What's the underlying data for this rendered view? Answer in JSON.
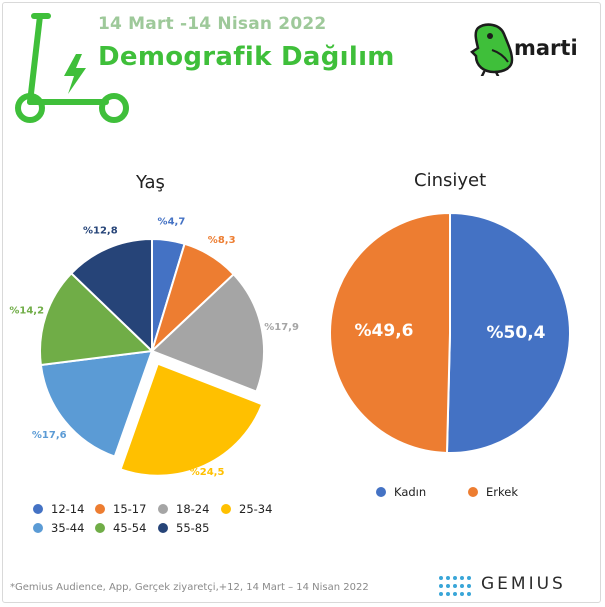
{
  "header": {
    "date_range": "14 Mart -14 Nisan 2022",
    "title": "Demografik Dağılım",
    "brand": "marti",
    "accent_color": "#3fbf3a",
    "icon": "scooter-icon"
  },
  "chart_data": [
    {
      "type": "pie",
      "title": "Yaş",
      "categories": [
        "12-14",
        "15-17",
        "18-24",
        "25-34",
        "35-44",
        "45-54",
        "55-85"
      ],
      "values": [
        4.7,
        8.3,
        17.9,
        24.5,
        17.6,
        14.2,
        12.8
      ],
      "labels": [
        "%4,7",
        "%8,3",
        "%17,9",
        "%24,5",
        "%17,6",
        "%14,2",
        "%12,8"
      ],
      "colors": [
        "#4472c4",
        "#ed7d31",
        "#a5a5a5",
        "#ffc000",
        "#5b9bd5",
        "#70ad47",
        "#264478"
      ],
      "exploded": "25-34",
      "legend": "bottom"
    },
    {
      "type": "pie",
      "title": "Cinsiyet",
      "categories": [
        "Kadın",
        "Erkek"
      ],
      "values": [
        50.4,
        49.6
      ],
      "labels": [
        "%50,4",
        "%49,6"
      ],
      "colors": [
        "#4472c4",
        "#ed7d31"
      ],
      "legend": "bottom"
    }
  ],
  "legend_age": {
    "items": [
      {
        "label": "12-14",
        "color": "#4472c4"
      },
      {
        "label": "15-17",
        "color": "#ed7d31"
      },
      {
        "label": "18-24",
        "color": "#a5a5a5"
      },
      {
        "label": "25-34",
        "color": "#ffc000"
      },
      {
        "label": "35-44",
        "color": "#5b9bd5"
      },
      {
        "label": "45-54",
        "color": "#70ad47"
      },
      {
        "label": "55-85",
        "color": "#264478"
      }
    ]
  },
  "legend_gender": {
    "items": [
      {
        "label": "Kadın",
        "color": "#4472c4"
      },
      {
        "label": "Erkek",
        "color": "#ed7d31"
      }
    ]
  },
  "footer": {
    "note": "*Gemius Audience, App, Gerçek ziyaretçi,+12, 14 Mart – 14 Nisan 2022",
    "source_brand": "GEMIUS",
    "source_icon": "gemius-dots-icon"
  }
}
